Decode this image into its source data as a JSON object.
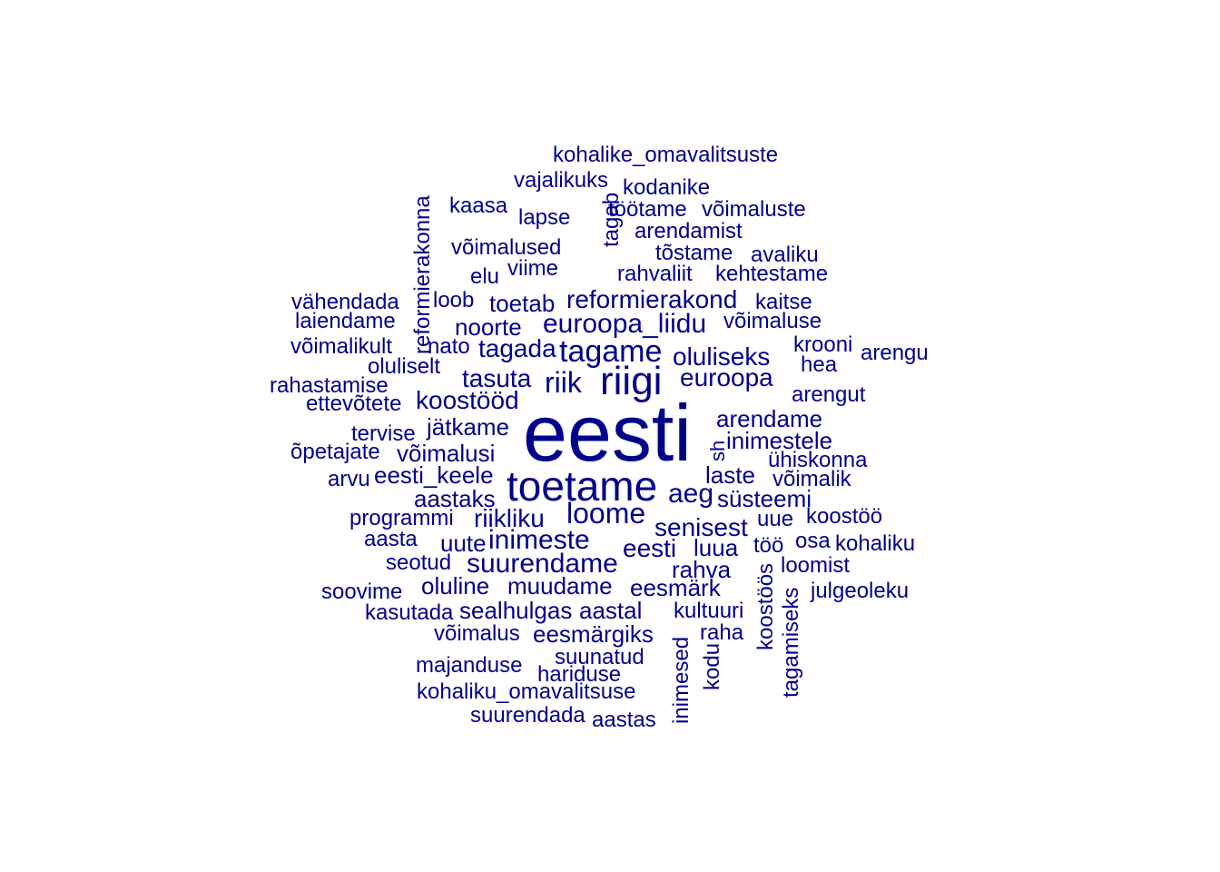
{
  "color": "#00008B",
  "words": [
    "kohalike_omavalitsuste",
    "vajalikuks",
    "kodanike",
    "kaasa",
    "lapse",
    "töötame",
    "võimaluste",
    "tagab",
    "arendamist",
    "võimalused",
    "tõstame",
    "avaliku",
    "elu",
    "viime",
    "rahvaliit",
    "kehtestame",
    "reformierakonna",
    "vähendada",
    "loob",
    "toetab",
    "reformierakond",
    "kaitse",
    "laiendame",
    "noorte",
    "euroopa_liidu",
    "võimaluse",
    "võimalikult",
    "nato",
    "tagada",
    "tagame",
    "krooni",
    "oluliseks",
    "arengu",
    "oluliselt",
    "hea",
    "rahastamise",
    "tasuta",
    "riik",
    "riigi",
    "euroopa",
    "ettevõtete",
    "koostööd",
    "arengut",
    "arendame",
    "tervise",
    "jätkame",
    "eesti",
    "inimestele",
    "sh",
    "õpetajate",
    "võimalusi",
    "ühiskonna",
    "arvu",
    "eesti_keele",
    "toetame",
    "laste",
    "võimalik",
    "aeg",
    "aastaks",
    "süsteemi",
    "programmi",
    "riikliku",
    "loome",
    "uue",
    "koostöö",
    "senisest",
    "aasta",
    "uute",
    "inimeste",
    "eesti",
    "luua",
    "töö",
    "osa",
    "kohaliku",
    "seotud",
    "suurendame",
    "rahva",
    "loomist",
    "koostöös",
    "oluline",
    "soovime",
    "muudame",
    "eesmärk",
    "julgeoleku",
    "tagamiseks",
    "kasutada",
    "sealhulgas",
    "aastal",
    "kultuuri",
    "võimalus",
    "eesmärgiks",
    "raha",
    "inimesed",
    "suunatud",
    "kodu",
    "majanduse",
    "hariduse",
    "kohaliku_omavalitsuse",
    "suurendada",
    "aastas"
  ]
}
